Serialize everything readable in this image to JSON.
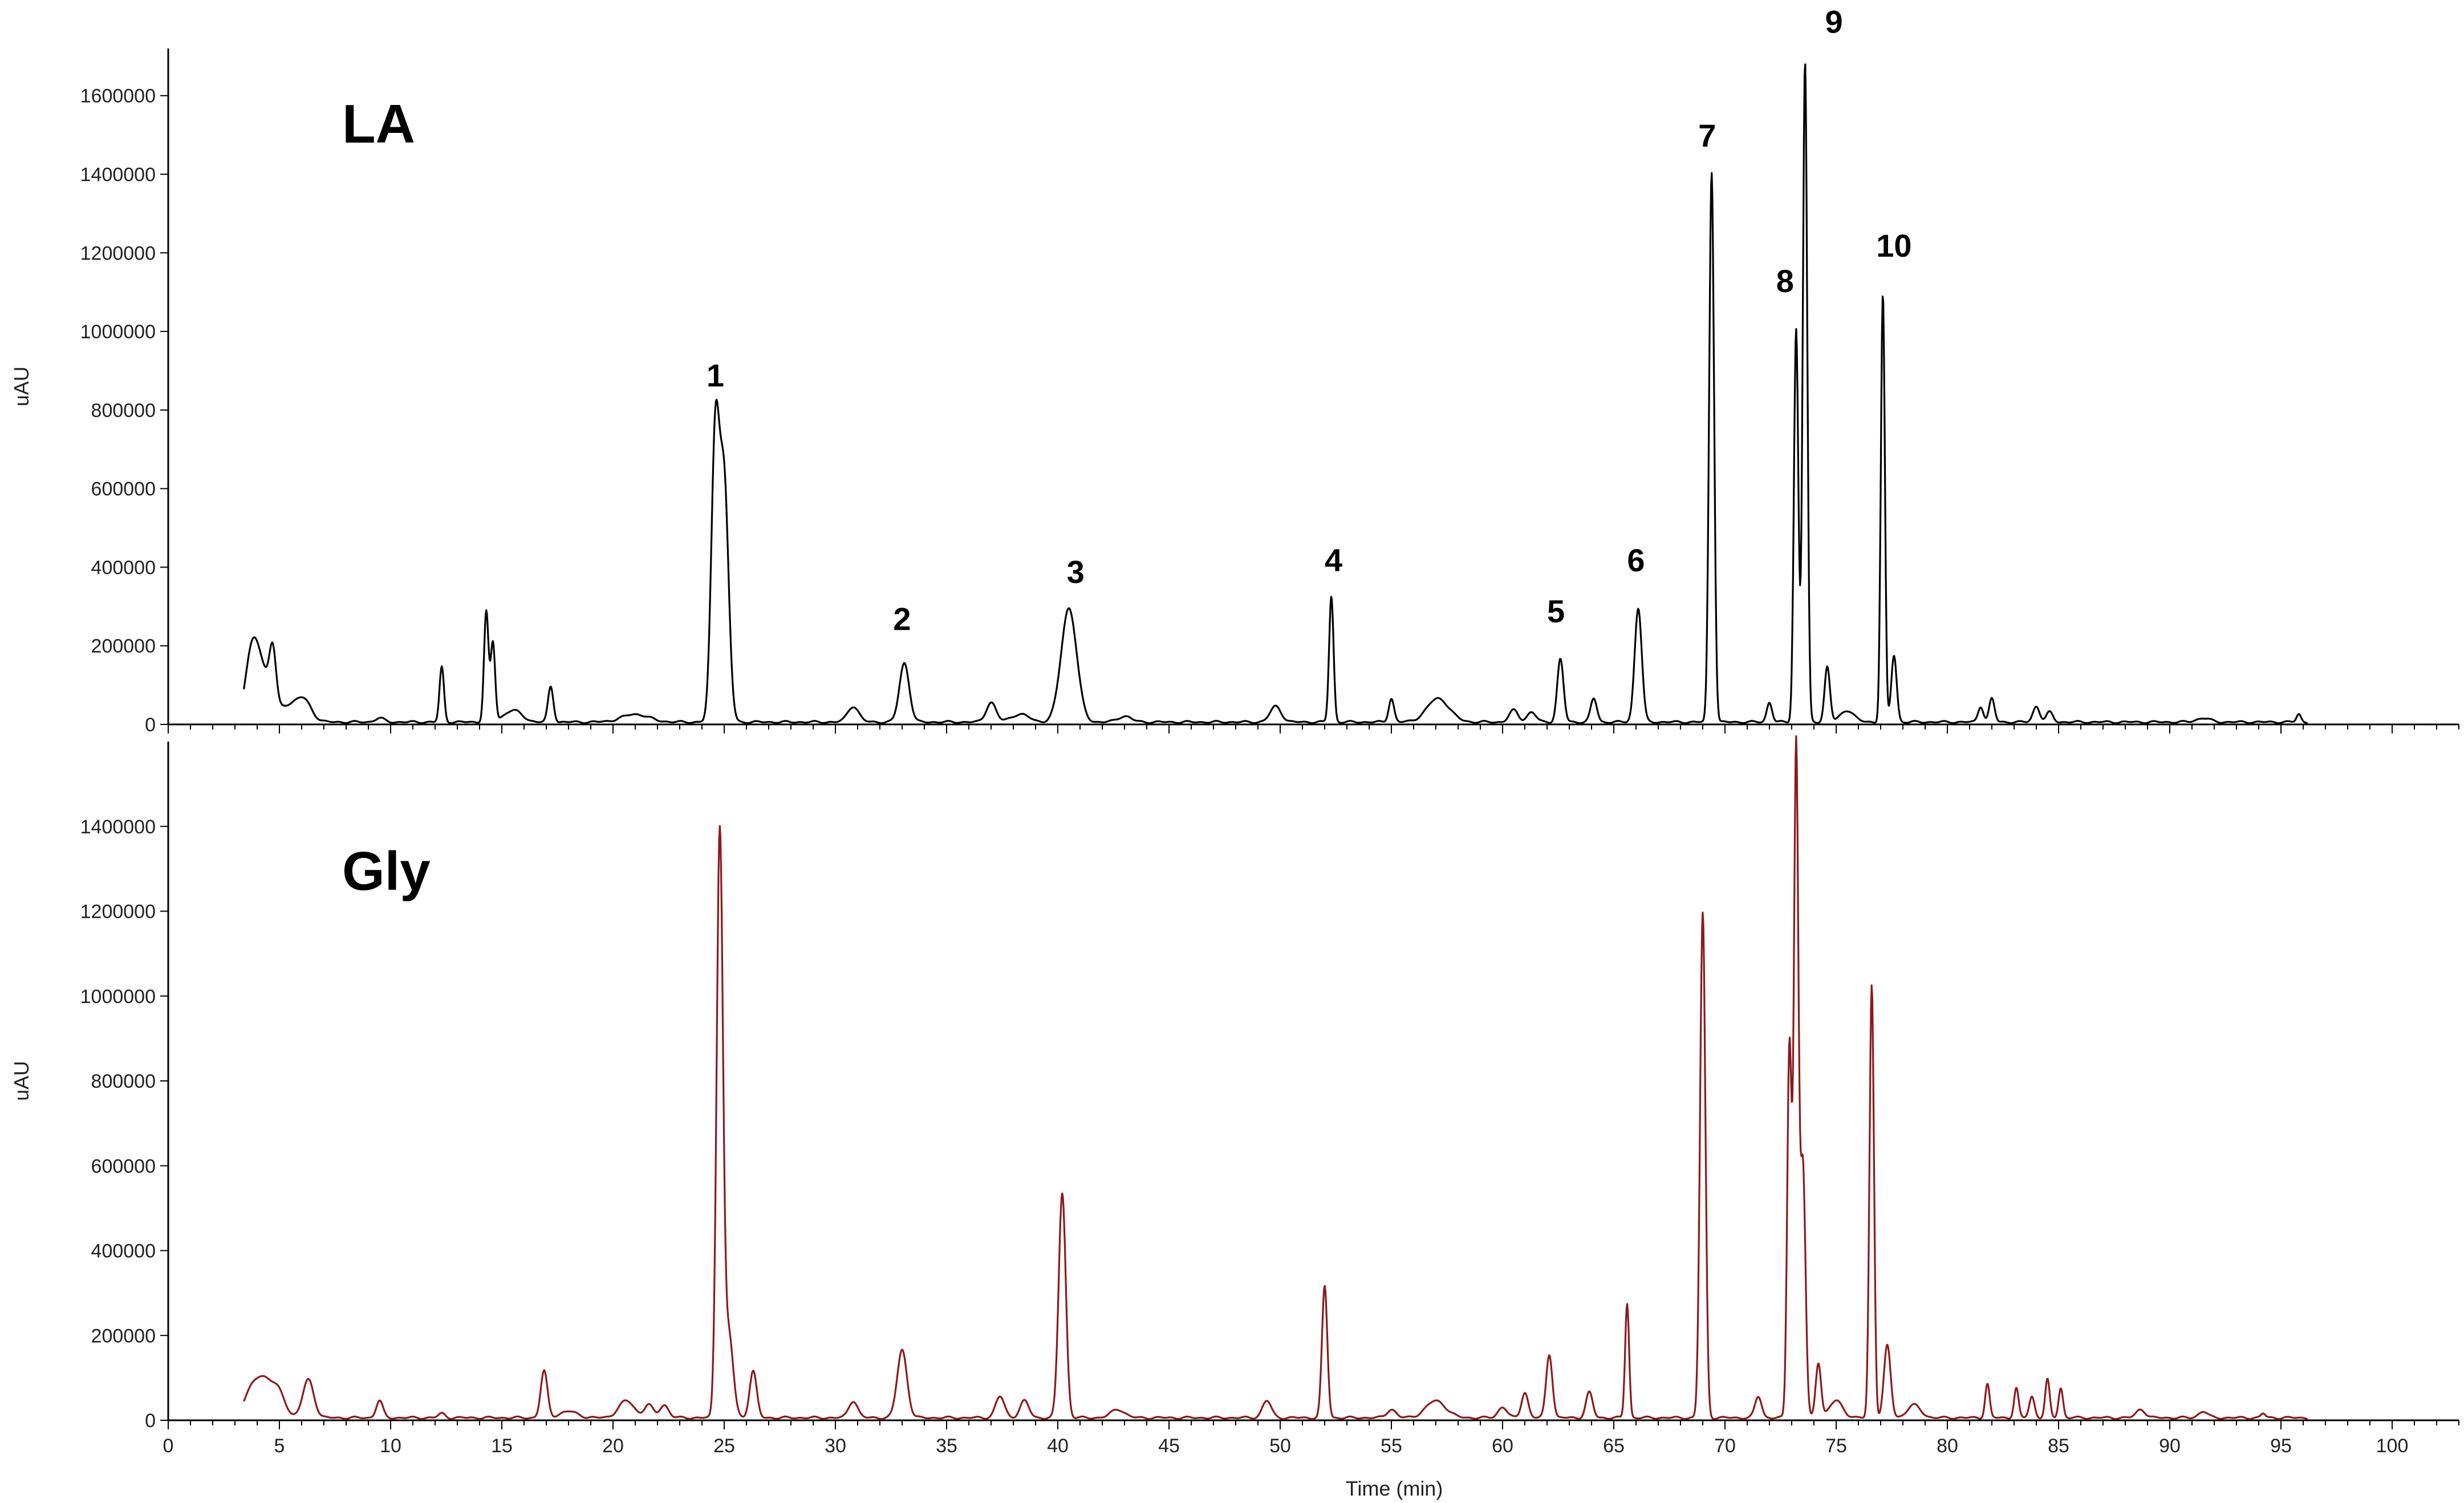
{
  "chart_data": {
    "type": "line",
    "xlabel": "Time (min)",
    "xlim": [
      0,
      103
    ],
    "xticks": [
      0,
      5,
      10,
      15,
      20,
      25,
      30,
      35,
      40,
      45,
      50,
      55,
      60,
      65,
      70,
      75,
      80,
      85,
      90,
      95,
      100
    ],
    "panels": [
      {
        "label": "LA",
        "color": "#000000",
        "ylabel": "uAU",
        "ylim": [
          0,
          1720000
        ],
        "yticks": [
          0,
          200000,
          400000,
          600000,
          800000,
          1000000,
          1200000,
          1400000,
          1600000
        ],
        "peaks": [
          {
            "x": 3.6,
            "y": 90000,
            "w": 0.25
          },
          {
            "x": 3.9,
            "y": 130000,
            "w": 0.25
          },
          {
            "x": 4.3,
            "y": 100000,
            "w": 0.3
          },
          {
            "x": 4.7,
            "y": 140000,
            "w": 0.15
          },
          {
            "x": 5.3,
            "y": 40000,
            "w": 0.5
          },
          {
            "x": 6.1,
            "y": 50000,
            "w": 0.35
          },
          {
            "x": 9.5,
            "y": 10000,
            "w": 0.2
          },
          {
            "x": 12.3,
            "y": 140000,
            "w": 0.1
          },
          {
            "x": 14.3,
            "y": 280000,
            "w": 0.1
          },
          {
            "x": 14.6,
            "y": 200000,
            "w": 0.1
          },
          {
            "x": 15.5,
            "y": 30000,
            "w": 0.4
          },
          {
            "x": 17.2,
            "y": 90000,
            "w": 0.12
          },
          {
            "x": 21,
            "y": 20000,
            "w": 0.6
          },
          {
            "x": 24.6,
            "y": 720000,
            "w": 0.18
          },
          {
            "x": 25.0,
            "y": 600000,
            "w": 0.2
          },
          {
            "x": 30.8,
            "y": 40000,
            "w": 0.25
          },
          {
            "x": 33.1,
            "y": 150000,
            "w": 0.22
          },
          {
            "x": 37.0,
            "y": 50000,
            "w": 0.22
          },
          {
            "x": 38.3,
            "y": 20000,
            "w": 0.4
          },
          {
            "x": 40.5,
            "y": 290000,
            "w": 0.35
          },
          {
            "x": 43,
            "y": 15000,
            "w": 0.3
          },
          {
            "x": 49.8,
            "y": 40000,
            "w": 0.25
          },
          {
            "x": 52.3,
            "y": 320000,
            "w": 0.1
          },
          {
            "x": 55.0,
            "y": 60000,
            "w": 0.12
          },
          {
            "x": 57.1,
            "y": 60000,
            "w": 0.5
          },
          {
            "x": 60.5,
            "y": 30000,
            "w": 0.2
          },
          {
            "x": 61.3,
            "y": 25000,
            "w": 0.2
          },
          {
            "x": 62.6,
            "y": 160000,
            "w": 0.14
          },
          {
            "x": 64.1,
            "y": 60000,
            "w": 0.14
          },
          {
            "x": 66.1,
            "y": 290000,
            "w": 0.16
          },
          {
            "x": 69.4,
            "y": 1400000,
            "w": 0.11
          },
          {
            "x": 72.0,
            "y": 50000,
            "w": 0.12
          },
          {
            "x": 73.2,
            "y": 1000000,
            "w": 0.1
          },
          {
            "x": 73.6,
            "y": 1680000,
            "w": 0.1
          },
          {
            "x": 74.6,
            "y": 140000,
            "w": 0.12
          },
          {
            "x": 75.5,
            "y": 30000,
            "w": 0.3
          },
          {
            "x": 77.1,
            "y": 1090000,
            "w": 0.09
          },
          {
            "x": 77.6,
            "y": 170000,
            "w": 0.12
          },
          {
            "x": 81.5,
            "y": 40000,
            "w": 0.12
          },
          {
            "x": 82.0,
            "y": 60000,
            "w": 0.12
          },
          {
            "x": 84.0,
            "y": 40000,
            "w": 0.15
          },
          {
            "x": 84.6,
            "y": 25000,
            "w": 0.15
          },
          {
            "x": 91.5,
            "y": 10000,
            "w": 0.3
          },
          {
            "x": 95.8,
            "y": 20000,
            "w": 0.1
          }
        ],
        "peak_labels": [
          {
            "text": "1",
            "x": 24.6,
            "y": 860000
          },
          {
            "text": "2",
            "x": 33.0,
            "y": 240000
          },
          {
            "text": "3",
            "x": 40.8,
            "y": 360000
          },
          {
            "text": "4",
            "x": 52.4,
            "y": 390000
          },
          {
            "text": "5",
            "x": 62.4,
            "y": 260000
          },
          {
            "text": "6",
            "x": 66.0,
            "y": 390000
          },
          {
            "text": "7",
            "x": 69.2,
            "y": 1470000
          },
          {
            "text": "8",
            "x": 72.7,
            "y": 1100000
          },
          {
            "text": "9",
            "x": 74.9,
            "y": 1760000
          },
          {
            "text": "10",
            "x": 77.6,
            "y": 1190000
          }
        ]
      },
      {
        "label": "Gly",
        "color": "#8b1a1a",
        "ylabel": "uAU",
        "ylim": [
          0,
          1600000
        ],
        "yticks": [
          0,
          200000,
          400000,
          600000,
          800000,
          1000000,
          1200000,
          1400000
        ],
        "peaks": [
          {
            "x": 3.8,
            "y": 60000,
            "w": 0.4
          },
          {
            "x": 4.4,
            "y": 70000,
            "w": 0.4
          },
          {
            "x": 5.0,
            "y": 45000,
            "w": 0.3
          },
          {
            "x": 6.3,
            "y": 90000,
            "w": 0.25
          },
          {
            "x": 9.5,
            "y": 40000,
            "w": 0.15
          },
          {
            "x": 12.3,
            "y": 10000,
            "w": 0.15
          },
          {
            "x": 16.9,
            "y": 110000,
            "w": 0.15
          },
          {
            "x": 18,
            "y": 15000,
            "w": 0.4
          },
          {
            "x": 20.6,
            "y": 40000,
            "w": 0.35
          },
          {
            "x": 21.6,
            "y": 30000,
            "w": 0.2
          },
          {
            "x": 22.3,
            "y": 30000,
            "w": 0.2
          },
          {
            "x": 24.8,
            "y": 1370000,
            "w": 0.14
          },
          {
            "x": 25.2,
            "y": 200000,
            "w": 0.2
          },
          {
            "x": 26.3,
            "y": 110000,
            "w": 0.16
          },
          {
            "x": 30.8,
            "y": 40000,
            "w": 0.2
          },
          {
            "x": 33.0,
            "y": 160000,
            "w": 0.22
          },
          {
            "x": 37.4,
            "y": 50000,
            "w": 0.2
          },
          {
            "x": 38.5,
            "y": 40000,
            "w": 0.2
          },
          {
            "x": 40.2,
            "y": 530000,
            "w": 0.16
          },
          {
            "x": 42.7,
            "y": 20000,
            "w": 0.3
          },
          {
            "x": 49.4,
            "y": 40000,
            "w": 0.2
          },
          {
            "x": 52.0,
            "y": 310000,
            "w": 0.12
          },
          {
            "x": 55.0,
            "y": 20000,
            "w": 0.2
          },
          {
            "x": 57.0,
            "y": 40000,
            "w": 0.45
          },
          {
            "x": 60.0,
            "y": 25000,
            "w": 0.2
          },
          {
            "x": 61.0,
            "y": 60000,
            "w": 0.15
          },
          {
            "x": 62.1,
            "y": 150000,
            "w": 0.14
          },
          {
            "x": 63.9,
            "y": 60000,
            "w": 0.15
          },
          {
            "x": 65.6,
            "y": 270000,
            "w": 0.09
          },
          {
            "x": 69.0,
            "y": 1190000,
            "w": 0.12
          },
          {
            "x": 71.5,
            "y": 50000,
            "w": 0.15
          },
          {
            "x": 72.9,
            "y": 880000,
            "w": 0.1
          },
          {
            "x": 73.2,
            "y": 1570000,
            "w": 0.1
          },
          {
            "x": 73.5,
            "y": 600000,
            "w": 0.12
          },
          {
            "x": 74.2,
            "y": 130000,
            "w": 0.12
          },
          {
            "x": 75.0,
            "y": 40000,
            "w": 0.3
          },
          {
            "x": 76.6,
            "y": 1020000,
            "w": 0.1
          },
          {
            "x": 77.3,
            "y": 170000,
            "w": 0.15
          },
          {
            "x": 78.5,
            "y": 30000,
            "w": 0.3
          },
          {
            "x": 81.8,
            "y": 80000,
            "w": 0.1
          },
          {
            "x": 83.1,
            "y": 70000,
            "w": 0.1
          },
          {
            "x": 83.8,
            "y": 50000,
            "w": 0.12
          },
          {
            "x": 84.5,
            "y": 90000,
            "w": 0.1
          },
          {
            "x": 85.1,
            "y": 70000,
            "w": 0.1
          },
          {
            "x": 88.7,
            "y": 20000,
            "w": 0.2
          },
          {
            "x": 91.5,
            "y": 15000,
            "w": 0.2
          },
          {
            "x": 94.2,
            "y": 10000,
            "w": 0.1
          }
        ],
        "peak_labels": []
      }
    ]
  }
}
